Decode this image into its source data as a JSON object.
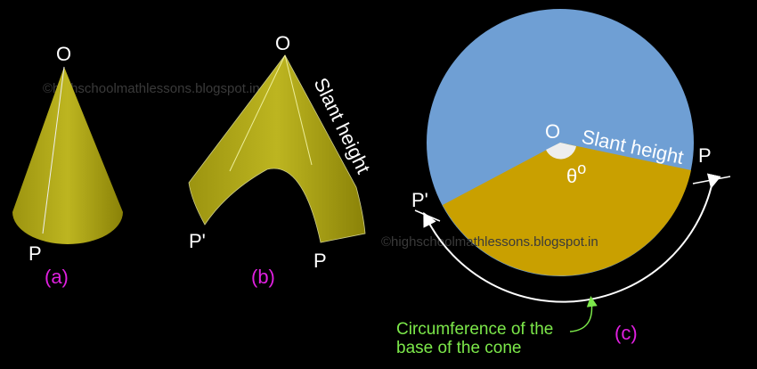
{
  "panels": [
    {
      "apex_label": "O",
      "point_label": "P",
      "caption": "(a)"
    },
    {
      "apex_label": "O",
      "edge_label": "Slant height",
      "left_label": "P'",
      "right_label": "P",
      "caption": "(b)"
    },
    {
      "center_label": "O",
      "radius_label": "Slant height",
      "angle_label": "θ",
      "angle_unit": "o",
      "right_label": "P",
      "left_label": "P'",
      "arc_label": [
        "Circumference of the",
        "base of the cone"
      ],
      "caption": "(c)"
    }
  ],
  "watermarks": [
    "©highschoolmathlessons.blogspot.in",
    "©highschoolmathlessons.blogspot.in"
  ]
}
